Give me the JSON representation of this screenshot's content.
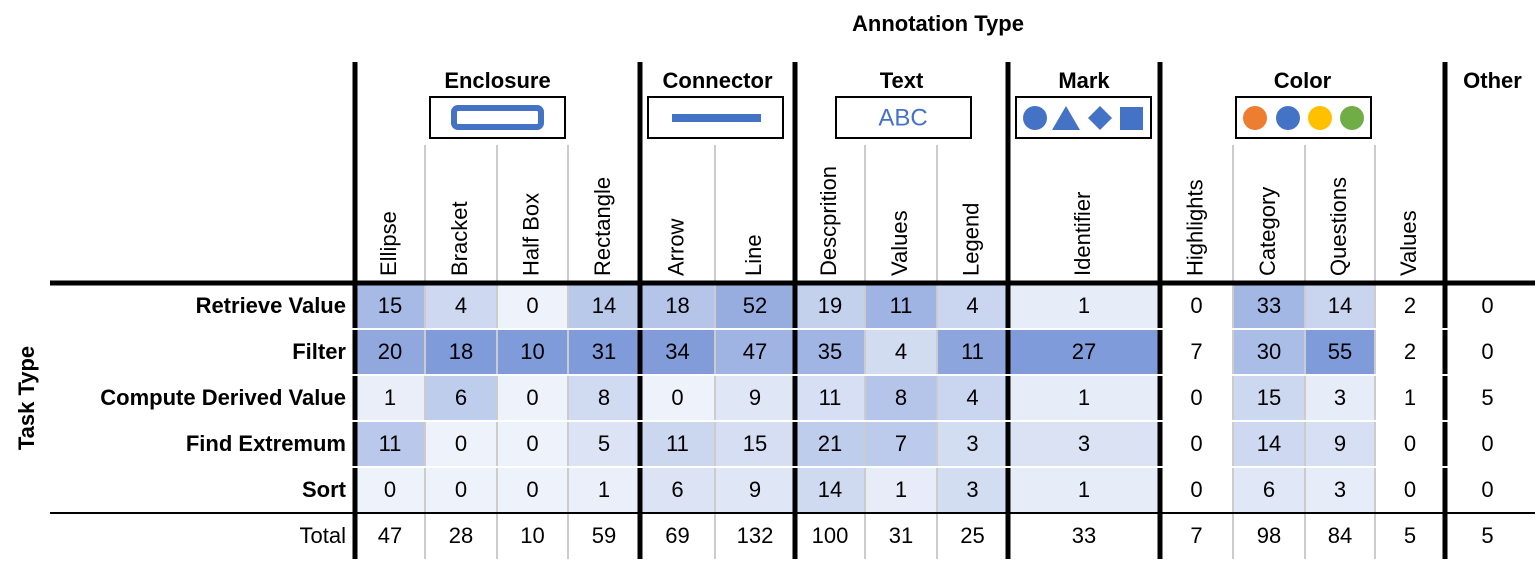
{
  "title": "Annotation Type",
  "row_axis_label": "Task Type",
  "groups": [
    {
      "name": "Enclosure",
      "columns": [
        "Ellipse",
        "Bracket",
        "Half Box",
        "Rectangle"
      ]
    },
    {
      "name": "Connector",
      "columns": [
        "Arrow",
        "Line"
      ]
    },
    {
      "name": "Text",
      "icon_text": "ABC",
      "columns": [
        "Descprition",
        "Values",
        "Legend"
      ]
    },
    {
      "name": "Mark",
      "columns": [
        "Identifier"
      ]
    },
    {
      "name": "Color",
      "columns": [
        "Highlights",
        "Category",
        "Questions",
        "Values"
      ]
    },
    {
      "name": "Other",
      "columns": [
        null
      ]
    }
  ],
  "rows": [
    {
      "label": "Retrieve Value",
      "values": [
        15,
        4,
        0,
        14,
        18,
        52,
        19,
        11,
        4,
        1,
        0,
        33,
        14,
        2,
        0
      ]
    },
    {
      "label": "Filter",
      "values": [
        20,
        18,
        10,
        31,
        34,
        47,
        35,
        4,
        11,
        27,
        7,
        30,
        55,
        2,
        0
      ]
    },
    {
      "label": "Compute Derived Value",
      "values": [
        1,
        6,
        0,
        8,
        0,
        9,
        11,
        8,
        4,
        1,
        0,
        15,
        3,
        1,
        5
      ]
    },
    {
      "label": "Find Extremum",
      "values": [
        11,
        0,
        0,
        5,
        11,
        15,
        21,
        7,
        3,
        3,
        0,
        14,
        9,
        0,
        0
      ]
    },
    {
      "label": "Sort",
      "values": [
        0,
        0,
        0,
        1,
        6,
        9,
        14,
        1,
        3,
        1,
        0,
        6,
        3,
        0,
        0
      ]
    }
  ],
  "total": {
    "label": "Total",
    "values": [
      47,
      28,
      10,
      59,
      69,
      132,
      100,
      31,
      25,
      33,
      7,
      98,
      84,
      5,
      5
    ]
  }
}
